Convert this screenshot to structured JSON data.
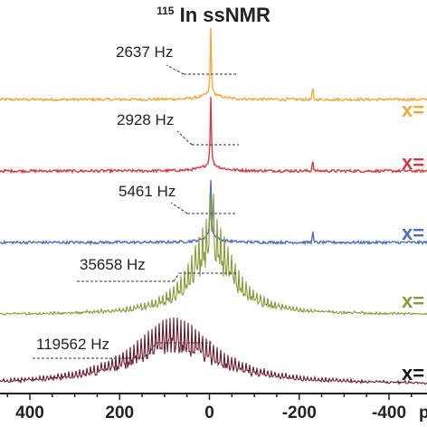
{
  "chart_data": {
    "type": "line",
    "title": {
      "superscript": "115",
      "text": "In ssNMR"
    },
    "x_axis": {
      "reversed": true,
      "ticks": [
        400,
        200,
        0,
        -200,
        -400
      ],
      "tick_labels": [
        "400",
        "200",
        "0",
        "-200",
        "-400"
      ],
      "unit_label_partial": "p"
    },
    "series": [
      {
        "name": "x=",
        "color": "#f2a93b",
        "peak_center": -3,
        "linewidth_hz": 2637,
        "linewidth_label": "2637 Hz",
        "spinning_sideband": -230
      },
      {
        "name": "x=",
        "color": "#d9373f",
        "peak_center": -3,
        "linewidth_hz": 2928,
        "linewidth_label": "2928 Hz",
        "spinning_sideband": -230
      },
      {
        "name": "x=",
        "color": "#4a6fb8",
        "peak_center": -3,
        "linewidth_hz": 5461,
        "linewidth_label": "5461 Hz",
        "spinning_sideband": -230
      },
      {
        "name": "x=",
        "color": "#8a9a3a",
        "peak_center": -5,
        "linewidth_hz": 35658,
        "linewidth_label": "35658 Hz"
      },
      {
        "name": "x=",
        "color": "#6b1a2a",
        "peak_center": 80,
        "linewidth_hz": 119562,
        "linewidth_label": "119562 Hz"
      }
    ]
  }
}
